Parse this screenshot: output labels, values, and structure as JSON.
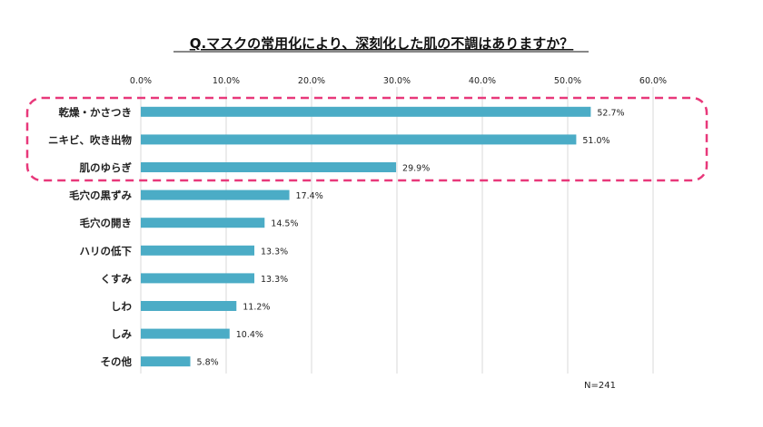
{
  "chart_data": {
    "type": "bar",
    "orientation": "horizontal",
    "title": "Q.マスクの常用化により、深刻化した肌の不調はありますか？",
    "categories": [
      "乾燥・かさつき",
      "ニキビ、吹き出物",
      "肌のゆらぎ",
      "毛穴の黒ずみ",
      "毛穴の開き",
      "ハリの低下",
      "くすみ",
      "しわ",
      "しみ",
      "その他"
    ],
    "values": [
      52.7,
      51.0,
      29.9,
      17.4,
      14.5,
      13.3,
      13.3,
      11.2,
      10.4,
      5.8
    ],
    "value_labels": [
      "52.7%",
      "51.0%",
      "29.9%",
      "17.4%",
      "14.5%",
      "13.3%",
      "13.3%",
      "11.2%",
      "10.4%",
      "5.8%"
    ],
    "xlim": [
      0,
      60
    ],
    "x_ticks": [
      0,
      10,
      20,
      30,
      40,
      50,
      60
    ],
    "x_tick_labels": [
      "0.0%",
      "10.0%",
      "20.0%",
      "30.0%",
      "40.0%",
      "50.0%",
      "60.0%"
    ],
    "axis_position": "top",
    "grid": true,
    "legend": "none",
    "highlighted_categories": [
      "乾燥・かさつき",
      "ニキビ、吹き出物",
      "肌のゆらぎ"
    ],
    "note": "N=241",
    "colors": {
      "bar": "#4bacc6",
      "highlight_border": "#e8387a",
      "grid": "#d9d9d9",
      "text": "#222222"
    }
  }
}
